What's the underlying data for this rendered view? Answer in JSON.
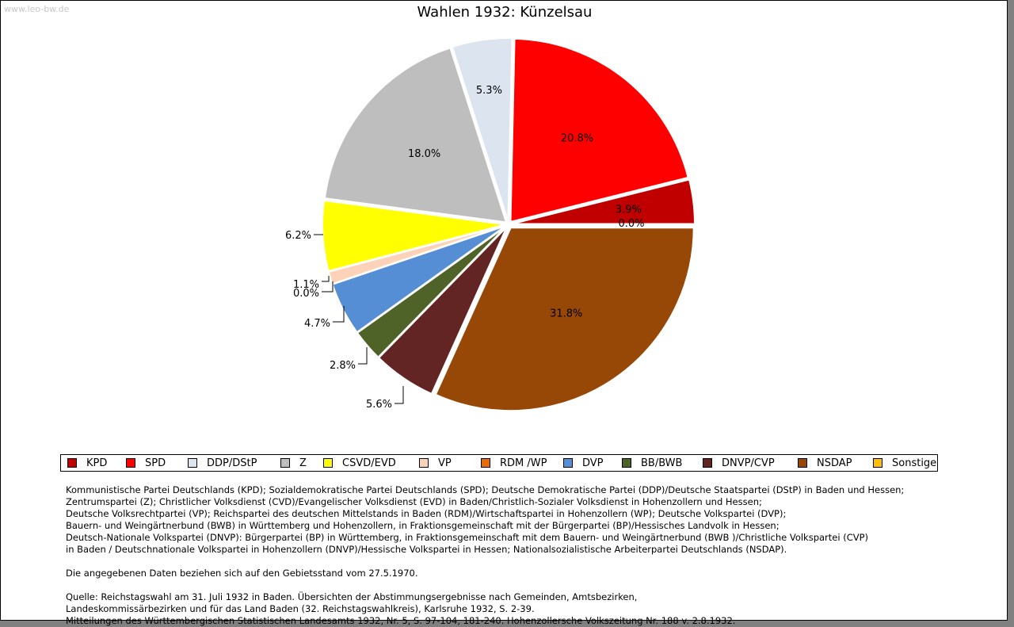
{
  "watermark": "www.leo-bw.de",
  "chart_data": {
    "type": "pie",
    "title": "Wahlen 1932: Künzelsau",
    "slices": [
      {
        "name": "KPD",
        "value": 3.9,
        "label": "3.9%",
        "color": "#c00000"
      },
      {
        "name": "SPD",
        "value": 20.8,
        "label": "20.8%",
        "color": "#ff0000"
      },
      {
        "name": "DDP/DStP",
        "value": 5.3,
        "label": "5.3%",
        "color": "#dce4f0"
      },
      {
        "name": "Z",
        "value": 18.0,
        "label": "18.0%",
        "color": "#bebebe"
      },
      {
        "name": "CSVD/EVD",
        "value": 6.2,
        "label": "6.2%",
        "color": "#ffff00"
      },
      {
        "name": "VP",
        "value": 1.1,
        "label": "1.1%",
        "color": "#fcd2b8"
      },
      {
        "name": "RDM /WP",
        "value": 0.0,
        "label": "0.0%",
        "color": "#e46c0a"
      },
      {
        "name": "DVP",
        "value": 4.7,
        "label": "4.7%",
        "color": "#558ed5"
      },
      {
        "name": "BB/BWB",
        "value": 2.8,
        "label": "2.8%",
        "color": "#4f6228"
      },
      {
        "name": "DNVP/CVP",
        "value": 5.6,
        "label": "5.6%",
        "color": "#632523"
      },
      {
        "name": "NSDAP",
        "value": 31.8,
        "label": "31.8%",
        "color": "#974806"
      },
      {
        "name": "Sonstige",
        "value": 0.0,
        "label": "0.0%",
        "color": "#ffc000"
      }
    ],
    "legend_position": "bottom"
  },
  "notes": {
    "party_lines": [
      "Kommunistische Partei Deutschlands (KPD); Sozialdemokratische Partei Deutschlands (SPD); Deutsche Demokratische Partei (DDP)/Deutsche Staatspartei (DStP) in Baden und Hessen;",
      "Zentrumspartei (Z); Christlicher Volksdienst (CVD)/Evangelischer Volksdienst (EVD) in Baden/Christlich-Sozialer Volksdienst in Hohenzollern und Hessen;",
      "Deutsche Volksrechtpartei (VP); Reichspartei des deutschen Mittelstands in Baden (RDM)/Wirtschaftspartei in Hohenzollern (WP); Deutsche Volkspartei (DVP);",
      "Bauern- und Weingärtnerbund (BWB) in Württemberg und Hohenzollern, in Fraktionsgemeinschaft mit der Bürgerpartei (BP)/Hessisches Landvolk in Hessen;",
      "Deutsch-Nationale Volkspartei (DNVP): Bürgerpartei (BP) in Württemberg, in Fraktionsgemeinschaft mit dem Bauern- und Weingärtnerbund (BWB )/Christliche Volkspartei (CVP)",
      "in Baden / Deutschnationale Volkspartei in Hohenzollern (DNVP)/Hessische Volkspartei in Hessen; Nationalsozialistische Arbeiterpartei Deutschlands (NSDAP)."
    ],
    "territory": "Die angegebenen Daten beziehen sich auf den Gebietsstand vom 27.5.1970.",
    "source_lines": [
      "Quelle: Reichstagswahl am 31. Juli 1932 in Baden. Übersichten der Abstimmungsergebnisse nach Gemeinden, Amtsbezirken,",
      "Landeskommissärbezirken und für das Land Baden (32. Reichstagswahlkreis), Karlsruhe 1932, S. 2-39.",
      "Mitteilungen des Württembergischen Statistischen Landesamts 1932, Nr. 5, S. 97-104, 181-240. Hohenzollersche Volkszeitung Nr. 188 v. 2.8.1932."
    ]
  }
}
